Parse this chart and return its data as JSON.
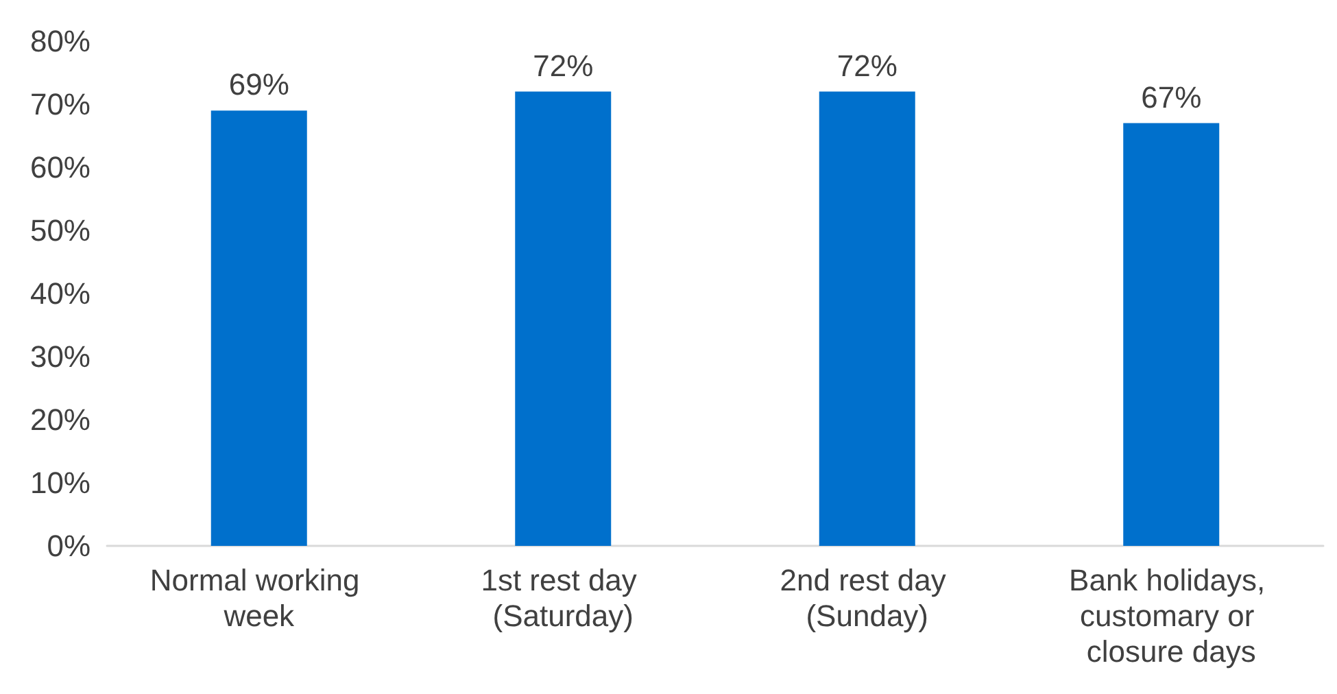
{
  "chart_data": {
    "type": "bar",
    "categories": [
      "Normal working week",
      "1st rest day (Saturday)",
      "2nd rest day (Sunday)",
      "Bank holidays, customary or closure days"
    ],
    "values": [
      69,
      72,
      72,
      67
    ],
    "value_labels": [
      "69%",
      "72%",
      "72%",
      "67%"
    ],
    "color": "#0070cc",
    "ylim": [
      0,
      80
    ],
    "yticks": [
      {
        "value": 0,
        "label": "0%"
      },
      {
        "value": 10,
        "label": "10%"
      },
      {
        "value": 20,
        "label": "20%"
      },
      {
        "value": 30,
        "label": "30%"
      },
      {
        "value": 40,
        "label": "40%"
      },
      {
        "value": 50,
        "label": "50%"
      },
      {
        "value": 60,
        "label": "60%"
      },
      {
        "value": 70,
        "label": "70%"
      },
      {
        "value": 80,
        "label": "80%"
      }
    ],
    "grid": false
  }
}
